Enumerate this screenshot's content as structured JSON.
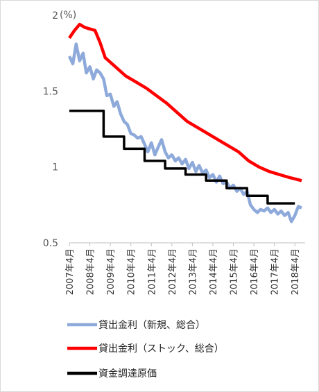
{
  "chart_data": {
    "type": "line",
    "unit_label": "(%)",
    "ylim": [
      0.5,
      2.0
    ],
    "y_ticks": [
      {
        "value": 2.0,
        "label": "2"
      },
      {
        "value": 1.5,
        "label": "1.5"
      },
      {
        "value": 1.0,
        "label": "1"
      },
      {
        "value": 0.5,
        "label": "0.5"
      }
    ],
    "x_ticks": [
      "2007年4月",
      "2008年4月",
      "2009年4月",
      "2010年4月",
      "2011年4月",
      "2012年4月",
      "2013年4月",
      "2014年4月",
      "2015年4月",
      "2016年4月",
      "2017年4月",
      "2018年4月"
    ],
    "grid": false,
    "legend_position": "bottom",
    "series": [
      {
        "name": "貸出金利（新規、総合）",
        "color": "#8eaadb",
        "values": [
          [
            2007.25,
            1.73
          ],
          [
            2007.42,
            1.68
          ],
          [
            2007.58,
            1.81
          ],
          [
            2007.75,
            1.7
          ],
          [
            2007.92,
            1.75
          ],
          [
            2008.08,
            1.62
          ],
          [
            2008.25,
            1.66
          ],
          [
            2008.42,
            1.58
          ],
          [
            2008.58,
            1.64
          ],
          [
            2008.75,
            1.62
          ],
          [
            2008.92,
            1.58
          ],
          [
            2009.08,
            1.47
          ],
          [
            2009.25,
            1.48
          ],
          [
            2009.42,
            1.4
          ],
          [
            2009.58,
            1.43
          ],
          [
            2009.75,
            1.35
          ],
          [
            2009.92,
            1.3
          ],
          [
            2010.08,
            1.28
          ],
          [
            2010.25,
            1.22
          ],
          [
            2010.42,
            1.21
          ],
          [
            2010.58,
            1.19
          ],
          [
            2010.75,
            1.2
          ],
          [
            2010.92,
            1.15
          ],
          [
            2011.08,
            1.1
          ],
          [
            2011.25,
            1.16
          ],
          [
            2011.42,
            1.08
          ],
          [
            2011.58,
            1.13
          ],
          [
            2011.75,
            1.18
          ],
          [
            2011.92,
            1.1
          ],
          [
            2012.08,
            1.06
          ],
          [
            2012.25,
            1.08
          ],
          [
            2012.42,
            1.04
          ],
          [
            2012.58,
            1.06
          ],
          [
            2012.75,
            1.02
          ],
          [
            2012.92,
            1.05
          ],
          [
            2013.08,
            0.99
          ],
          [
            2013.25,
            1.03
          ],
          [
            2013.42,
            0.97
          ],
          [
            2013.58,
            1.01
          ],
          [
            2013.75,
            0.96
          ],
          [
            2013.92,
            0.98
          ],
          [
            2014.08,
            0.93
          ],
          [
            2014.25,
            0.95
          ],
          [
            2014.42,
            0.9
          ],
          [
            2014.58,
            0.94
          ],
          [
            2014.75,
            0.89
          ],
          [
            2014.92,
            0.9
          ],
          [
            2015.08,
            0.86
          ],
          [
            2015.25,
            0.88
          ],
          [
            2015.42,
            0.84
          ],
          [
            2015.58,
            0.86
          ],
          [
            2015.75,
            0.82
          ],
          [
            2015.92,
            0.84
          ],
          [
            2016.08,
            0.75
          ],
          [
            2016.25,
            0.72
          ],
          [
            2016.42,
            0.7
          ],
          [
            2016.58,
            0.72
          ],
          [
            2016.75,
            0.71
          ],
          [
            2016.92,
            0.73
          ],
          [
            2017.08,
            0.7
          ],
          [
            2017.25,
            0.72
          ],
          [
            2017.42,
            0.69
          ],
          [
            2017.58,
            0.71
          ],
          [
            2017.75,
            0.68
          ],
          [
            2017.92,
            0.7
          ],
          [
            2018.08,
            0.64
          ],
          [
            2018.25,
            0.68
          ],
          [
            2018.42,
            0.74
          ],
          [
            2018.58,
            0.73
          ]
        ]
      },
      {
        "name": "貸出金利（ストック、総合）",
        "color": "#ff0000",
        "values": [
          [
            2007.25,
            1.85
          ],
          [
            2007.5,
            1.9
          ],
          [
            2007.75,
            1.94
          ],
          [
            2008.0,
            1.92
          ],
          [
            2008.25,
            1.91
          ],
          [
            2008.5,
            1.9
          ],
          [
            2008.75,
            1.82
          ],
          [
            2009.0,
            1.72
          ],
          [
            2009.5,
            1.66
          ],
          [
            2010.0,
            1.6
          ],
          [
            2010.5,
            1.56
          ],
          [
            2011.0,
            1.52
          ],
          [
            2011.5,
            1.47
          ],
          [
            2012.0,
            1.42
          ],
          [
            2012.5,
            1.36
          ],
          [
            2013.0,
            1.3
          ],
          [
            2013.5,
            1.26
          ],
          [
            2014.0,
            1.22
          ],
          [
            2014.5,
            1.18
          ],
          [
            2015.0,
            1.14
          ],
          [
            2015.5,
            1.1
          ],
          [
            2016.0,
            1.04
          ],
          [
            2016.5,
            1.0
          ],
          [
            2017.0,
            0.97
          ],
          [
            2017.5,
            0.95
          ],
          [
            2018.0,
            0.93
          ],
          [
            2018.58,
            0.91
          ]
        ]
      },
      {
        "name": "資金調達原価",
        "color": "#000000",
        "values": [
          [
            2007.25,
            1.37
          ],
          [
            2008.92,
            1.37
          ],
          [
            2008.92,
            1.2
          ],
          [
            2009.92,
            1.2
          ],
          [
            2009.92,
            1.12
          ],
          [
            2010.92,
            1.12
          ],
          [
            2010.92,
            1.04
          ],
          [
            2011.92,
            1.04
          ],
          [
            2011.92,
            0.99
          ],
          [
            2012.92,
            0.99
          ],
          [
            2012.92,
            0.95
          ],
          [
            2013.92,
            0.95
          ],
          [
            2013.92,
            0.91
          ],
          [
            2014.92,
            0.91
          ],
          [
            2014.92,
            0.86
          ],
          [
            2015.92,
            0.86
          ],
          [
            2015.92,
            0.81
          ],
          [
            2016.92,
            0.81
          ],
          [
            2016.92,
            0.76
          ],
          [
            2018.25,
            0.76
          ]
        ]
      }
    ]
  }
}
